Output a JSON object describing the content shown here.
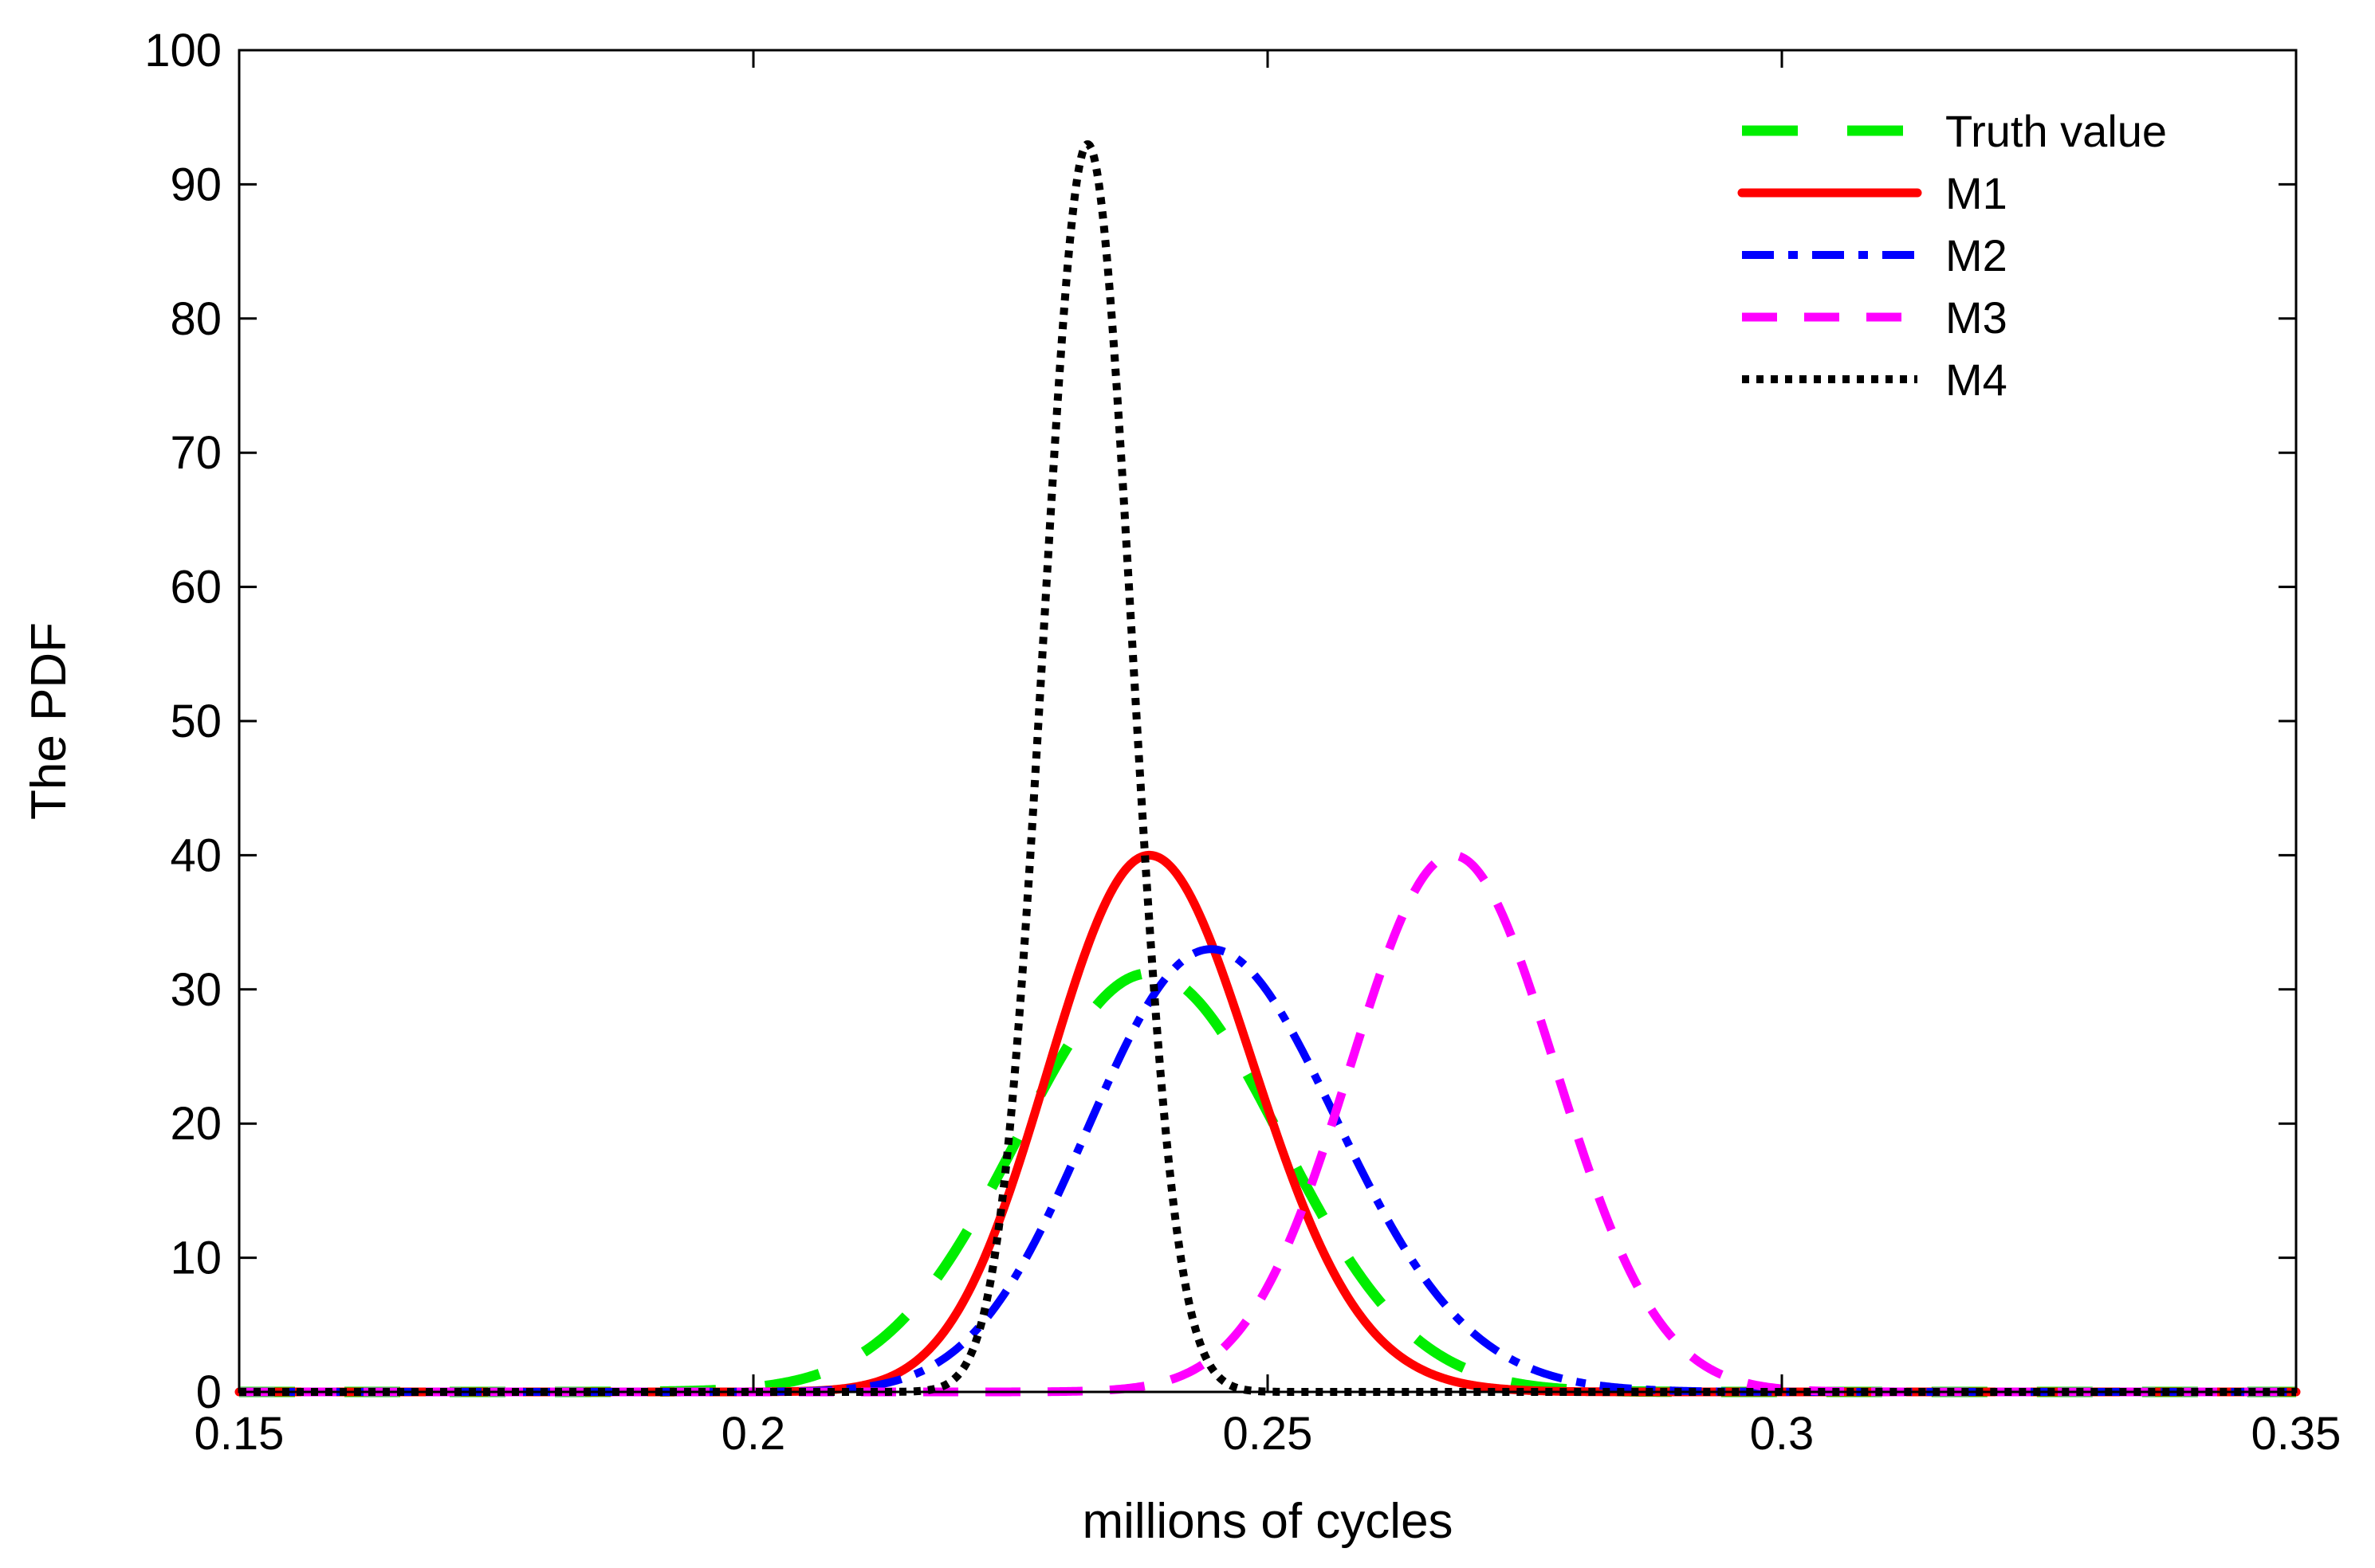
{
  "chart_data": {
    "type": "line",
    "title": "",
    "xlabel": "millions of cycles",
    "ylabel": "The PDF",
    "xlim": [
      0.15,
      0.35
    ],
    "ylim": [
      0,
      100
    ],
    "xticks": [
      0.15,
      0.2,
      0.25,
      0.3,
      0.35
    ],
    "xtick_labels": [
      "0.15",
      "0.2",
      "0.25",
      "0.3",
      "0.35"
    ],
    "yticks": [
      0,
      10,
      20,
      30,
      40,
      50,
      60,
      70,
      80,
      90,
      100
    ],
    "ytick_labels": [
      "0",
      "10",
      "20",
      "30",
      "40",
      "50",
      "60",
      "70",
      "80",
      "90",
      "100"
    ],
    "grid": false,
    "legend_position": "top-right",
    "series": [
      {
        "name": "Truth value",
        "color": "#00ee00",
        "style": "long-dash",
        "distribution": "normal",
        "mean": 0.2385,
        "std": 0.0128,
        "peak": 31.2
      },
      {
        "name": "M1",
        "color": "#ff0000",
        "style": "solid",
        "distribution": "lognormal",
        "mode": 0.2385,
        "peak": 40.0
      },
      {
        "name": "M2",
        "color": "#0000ff",
        "style": "dash-dot",
        "distribution": "lognormal",
        "mode": 0.2445,
        "peak": 33.0
      },
      {
        "name": "M3",
        "color": "#ff00ff",
        "style": "dash",
        "distribution": "normal",
        "mean": 0.268,
        "std": 0.00997,
        "peak": 40.0
      },
      {
        "name": "M4",
        "color": "#000000",
        "style": "dotted",
        "distribution": "normal",
        "mean": 0.2325,
        "std": 0.00429,
        "peak": 93.0
      }
    ]
  }
}
